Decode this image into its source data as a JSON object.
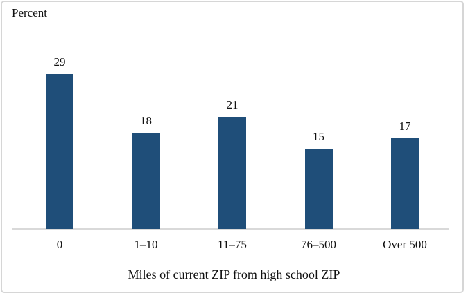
{
  "frame": {
    "background_color": "#ffffff",
    "border_color": "#d6d6d6"
  },
  "chart_data": {
    "type": "bar",
    "title": "",
    "ylabel": "Percent",
    "xlabel": "Miles of current ZIP from high school ZIP",
    "categories": [
      "0",
      "1–10",
      "11–75",
      "76–500",
      "Over 500"
    ],
    "values": [
      29,
      18,
      21,
      15,
      17
    ],
    "bar_color": "#1f4e79",
    "axis_line_color": "#d9d9d9",
    "ylim": [
      0,
      30
    ],
    "grid": false,
    "data_labels": true,
    "legend": "none"
  }
}
